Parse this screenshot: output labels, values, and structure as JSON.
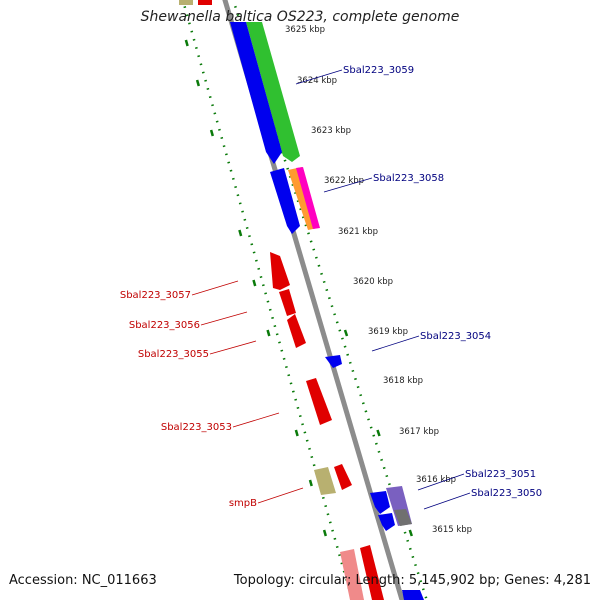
{
  "title": "Shewanella baltica OS223, complete genome",
  "footer": {
    "accession": "Accession: NC_011663",
    "summary": "Topology: circular; Length: 5,145,902 bp; Genes: 4,281"
  },
  "scale_labels": [
    {
      "kbp": 3625,
      "text": "3625 kbp"
    },
    {
      "kbp": 3624,
      "text": "3624 kbp"
    },
    {
      "kbp": 3623,
      "text": "3623 kbp"
    },
    {
      "kbp": 3622,
      "text": "3622 kbp"
    },
    {
      "kbp": 3621,
      "text": "3621 kbp"
    },
    {
      "kbp": 3620,
      "text": "3620 kbp"
    },
    {
      "kbp": 3619,
      "text": "3619 kbp"
    },
    {
      "kbp": 3618,
      "text": "3618 kbp"
    },
    {
      "kbp": 3617,
      "text": "3617 kbp"
    },
    {
      "kbp": 3616,
      "text": "3616 kbp"
    },
    {
      "kbp": 3615,
      "text": "3615 kbp"
    }
  ],
  "gene_labels_right": [
    {
      "name": "Sbal223_3059"
    },
    {
      "name": "Sbal223_3058"
    },
    {
      "name": "Sbal223_3054"
    },
    {
      "name": "Sbal223_3051"
    },
    {
      "name": "Sbal223_3050"
    }
  ],
  "gene_labels_left": [
    {
      "name": "Sbal223_3057"
    },
    {
      "name": "Sbal223_3056"
    },
    {
      "name": "Sbal223_3055"
    },
    {
      "name": "Sbal223_3053"
    },
    {
      "name": "smpB"
    }
  ],
  "colors": {
    "backbone": "#8c8c8c",
    "forward_strand": "#0000ee",
    "reverse_strand": "#e00000",
    "rna": "#30c030",
    "ticks": "#0a7a0a",
    "right_label": "#00007f",
    "left_label": "#c00000"
  }
}
